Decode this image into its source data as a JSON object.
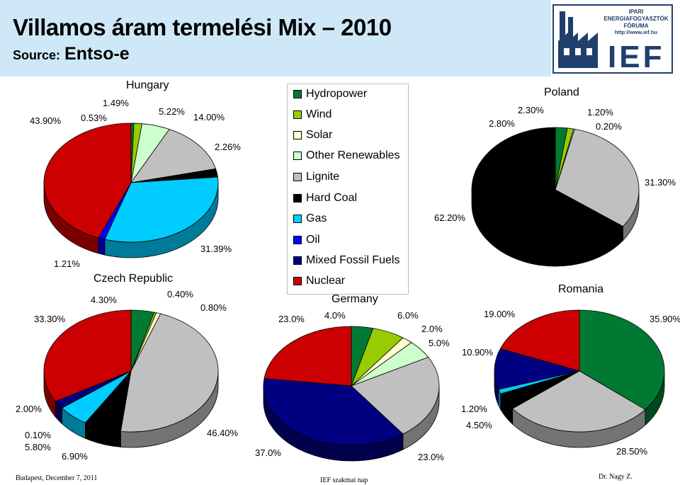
{
  "header": {
    "title": "Villamos áram termelési Mix – 2010",
    "source_key": "Source:",
    "source_value": "Entso-e"
  },
  "logo": {
    "text": "IPARI ENERGIAFOGYASZTÓK FÓRUMA",
    "url": "http://www.ief.hu",
    "abbr": "IEF"
  },
  "legend": {
    "items": [
      {
        "label": "Hydropower",
        "color": "#007a33"
      },
      {
        "label": "Wind",
        "color": "#99cc00"
      },
      {
        "label": "Solar",
        "color": "#ffffcc"
      },
      {
        "label": "Other Renewables",
        "color": "#ccffcc"
      },
      {
        "label": "Lignite",
        "color": "#c0c0c0"
      },
      {
        "label": "Hard Coal",
        "color": "#000000"
      },
      {
        "label": "Gas",
        "color": "#00ccff"
      },
      {
        "label": "Oil",
        "color": "#0000ff"
      },
      {
        "label": "Mixed Fossil Fuels",
        "color": "#000080"
      },
      {
        "label": "Nuclear",
        "color": "#cc0000"
      }
    ]
  },
  "chart_data": [
    {
      "type": "pie",
      "title": "Hungary",
      "slices": [
        {
          "category": "Hydropower",
          "value": 0.53,
          "label": "0.53%"
        },
        {
          "category": "Wind",
          "value": 1.49,
          "label": "1.49%"
        },
        {
          "category": "Other Renewables",
          "value": 5.22,
          "label": "5.22%"
        },
        {
          "category": "Lignite",
          "value": 14.0,
          "label": "14.00%"
        },
        {
          "category": "Hard Coal",
          "value": 2.26,
          "label": "2.26%"
        },
        {
          "category": "Gas",
          "value": 31.39,
          "label": "31.39%"
        },
        {
          "category": "Oil",
          "value": 1.21,
          "label": "1.21%"
        },
        {
          "category": "Nuclear",
          "value": 43.9,
          "label": "43.90%"
        }
      ]
    },
    {
      "type": "pie",
      "title": "Czech Republic",
      "slices": [
        {
          "category": "Hydropower",
          "value": 4.3,
          "label": "4.30%"
        },
        {
          "category": "Wind",
          "value": 0.4,
          "label": "0.40%"
        },
        {
          "category": "Solar",
          "value": 0.8,
          "label": "0.80%"
        },
        {
          "category": "Lignite",
          "value": 46.4,
          "label": "46.40%"
        },
        {
          "category": "Hard Coal",
          "value": 6.9,
          "label": "6.90%"
        },
        {
          "category": "Gas",
          "value": 5.8,
          "label": "5.80%"
        },
        {
          "category": "Oil",
          "value": 0.1,
          "label": "0.10%"
        },
        {
          "category": "Mixed Fossil Fuels",
          "value": 2.0,
          "label": "2.00%"
        },
        {
          "category": "Nuclear",
          "value": 33.3,
          "label": "33.30%"
        }
      ]
    },
    {
      "type": "pie",
      "title": "Germany",
      "slices": [
        {
          "category": "Hydropower",
          "value": 4.0,
          "label": "4.0%"
        },
        {
          "category": "Wind",
          "value": 6.0,
          "label": "6.0%"
        },
        {
          "category": "Solar",
          "value": 2.0,
          "label": "2.0%"
        },
        {
          "category": "Other Renewables",
          "value": 5.0,
          "label": "5.0%"
        },
        {
          "category": "Lignite",
          "value": 23.0,
          "label": "23.0%"
        },
        {
          "category": "Mixed Fossil Fuels",
          "value": 37.0,
          "label": "37.0%"
        },
        {
          "category": "Nuclear",
          "value": 23.0,
          "label": "23.0%"
        }
      ]
    },
    {
      "type": "pie",
      "title": "Poland",
      "slices": [
        {
          "category": "Hydropower",
          "value": 2.3,
          "label": "2.30%"
        },
        {
          "category": "Wind",
          "value": 1.2,
          "label": "1.20%"
        },
        {
          "category": "Other Renewables",
          "value": 0.2,
          "label": "0.20%"
        },
        {
          "category": "Lignite",
          "value": 31.3,
          "label": "31.30%"
        },
        {
          "category": "Hard Coal",
          "value": 62.2,
          "label": "62.20%"
        },
        {
          "category": "Hard Coal",
          "value": 2.8,
          "label": "2.80%"
        }
      ]
    },
    {
      "type": "pie",
      "title": "Romania",
      "slices": [
        {
          "category": "Hydropower",
          "value": 35.9,
          "label": "35.90%"
        },
        {
          "category": "Lignite",
          "value": 28.5,
          "label": "28.50%"
        },
        {
          "category": "Hard Coal",
          "value": 4.5,
          "label": "4.50%"
        },
        {
          "category": "Gas",
          "value": 1.2,
          "label": "1.20%"
        },
        {
          "category": "Mixed Fossil Fuels",
          "value": 10.9,
          "label": "10.90%"
        },
        {
          "category": "Nuclear",
          "value": 19.0,
          "label": "19.00%"
        }
      ]
    }
  ],
  "footer": {
    "left": "Budapest, December 7, 2011",
    "center": "IEF szakmai nap",
    "right": "Dr. Nagy Z."
  }
}
